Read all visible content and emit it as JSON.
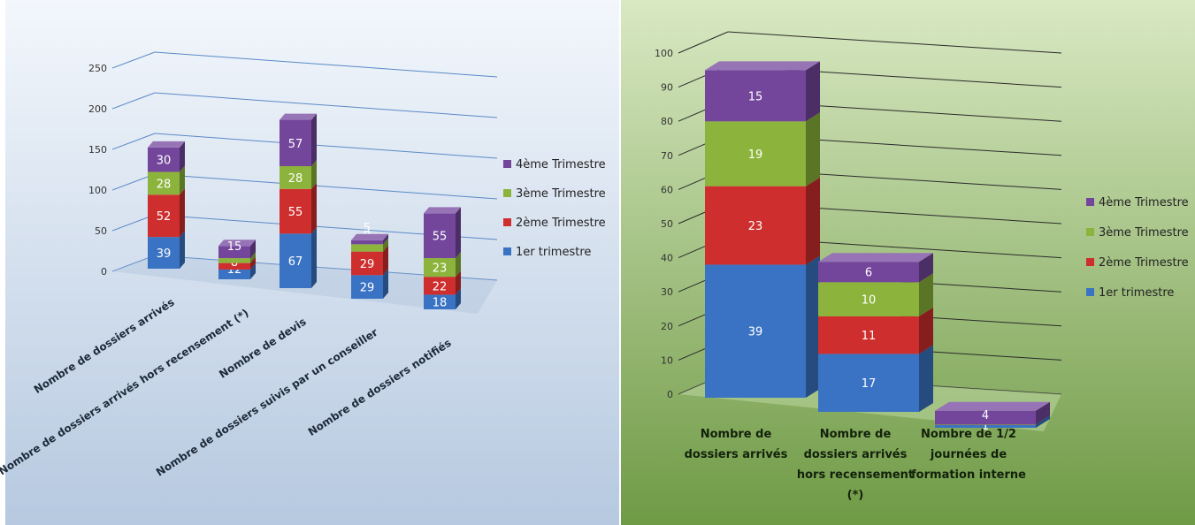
{
  "colors": {
    "series": [
      "#3a73c4",
      "#cf2e2e",
      "#8cb43c",
      "#73469c"
    ],
    "left_background": "#cfdcec",
    "right_background": "#a4c282"
  },
  "chart_data": [
    {
      "type": "bar",
      "stacked": true,
      "categories": [
        "Nombre de dossiers arrivés",
        "Nombre de dossiers arrivés hors recensement (*)",
        "Nombre de devis",
        "Nombre de dossiers suivis par un conseiller",
        "Nombre de dossiers notifiés"
      ],
      "series": [
        {
          "name": "1er trimestre",
          "values": [
            39,
            12,
            67,
            29,
            18
          ]
        },
        {
          "name": "2ème Trimestre",
          "values": [
            52,
            8,
            55,
            29,
            22
          ]
        },
        {
          "name": "3ème Trimestre",
          "values": [
            28,
            6,
            28,
            9,
            23
          ]
        },
        {
          "name": "4ème Trimestre",
          "values": [
            30,
            15,
            57,
            5,
            55
          ]
        }
      ],
      "y_ticks": [
        "0",
        "50",
        "100",
        "150",
        "200",
        "250"
      ],
      "ylim": [
        0,
        250
      ],
      "legend": "right",
      "grid": true
    },
    {
      "type": "bar",
      "stacked": true,
      "categories": [
        "Nombre de dossiers arrivés",
        "Nombre de dossiers arrivés hors recensement (*)",
        "Nombre de 1/2 journées de formation interne"
      ],
      "category_lines": [
        [
          "Nombre de",
          "dossiers arrivés"
        ],
        [
          "Nombre de",
          "dossiers arrivés",
          "hors recensement",
          "(*)"
        ],
        [
          "Nombre de 1/2",
          "journées de",
          "formation interne"
        ]
      ],
      "series": [
        {
          "name": "1er trimestre",
          "values": [
            39,
            17,
            1
          ]
        },
        {
          "name": "2ème Trimestre",
          "values": [
            23,
            11,
            0
          ]
        },
        {
          "name": "3ème Trimestre",
          "values": [
            19,
            10,
            0
          ]
        },
        {
          "name": "4ème Trimestre",
          "values": [
            15,
            6,
            4
          ]
        }
      ],
      "display_labels": [
        [
          "39",
          "23",
          "19",
          "15"
        ],
        [
          "17",
          "11",
          "10",
          "6"
        ],
        [
          "1",
          "0",
          "0",
          "4"
        ]
      ],
      "y_ticks": [
        "0",
        "10",
        "20",
        "30",
        "40",
        "50",
        "60",
        "70",
        "80",
        "90",
        "100"
      ],
      "ylim": [
        0,
        100
      ],
      "legend": "right",
      "grid": true
    }
  ]
}
